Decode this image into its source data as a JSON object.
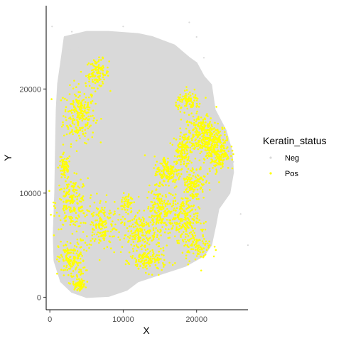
{
  "chart_data": {
    "type": "scatter",
    "title": "",
    "xlabel": "X",
    "ylabel": "Y",
    "xlim": [
      -500,
      27000
    ],
    "ylim": [
      -1200,
      28000
    ],
    "x_ticks": [
      0,
      10000,
      20000
    ],
    "x_tick_labels": [
      "0",
      "10000",
      "20000"
    ],
    "y_ticks": [
      0,
      10000,
      20000
    ],
    "y_tick_labels": [
      "0",
      "10000",
      "20000"
    ],
    "grid": false,
    "legend": {
      "title": "Keratin_status",
      "position": "right",
      "entries": [
        {
          "label": "Neg",
          "color": "#d9d9d9"
        },
        {
          "label": "Pos",
          "color": "#ffff00"
        }
      ]
    },
    "series": [
      {
        "name": "Neg",
        "color": "#d9d9d9",
        "tissue_outline": [
          [
            2000,
            25000
          ],
          [
            5000,
            25500
          ],
          [
            8000,
            25500
          ],
          [
            12000,
            25300
          ],
          [
            14000,
            25000
          ],
          [
            17000,
            24200
          ],
          [
            19000,
            23000
          ],
          [
            20000,
            22500
          ],
          [
            21000,
            21200
          ],
          [
            22000,
            20400
          ],
          [
            22500,
            18000
          ],
          [
            24000,
            16000
          ],
          [
            24800,
            14000
          ],
          [
            25000,
            12000
          ],
          [
            24500,
            10000
          ],
          [
            23000,
            8500
          ],
          [
            22600,
            7000
          ],
          [
            22000,
            5000
          ],
          [
            21000,
            4000
          ],
          [
            18500,
            3000
          ],
          [
            15000,
            2200
          ],
          [
            12000,
            1500
          ],
          [
            10500,
            700
          ],
          [
            8000,
            100
          ],
          [
            5000,
            0
          ],
          [
            3000,
            500
          ],
          [
            1500,
            1500
          ],
          [
            600,
            3500
          ],
          [
            500,
            6000
          ],
          [
            700,
            10000
          ],
          [
            800,
            14000
          ],
          [
            900,
            18000
          ],
          [
            1100,
            20500
          ],
          [
            1500,
            22500
          ]
        ],
        "points": [
          [
            3000,
            25500
          ],
          [
            2700,
            23800
          ],
          [
            6200,
            22800
          ],
          [
            13500,
            22500
          ],
          [
            9000,
            12500
          ],
          [
            14000,
            8500
          ],
          [
            15500,
            2500
          ],
          [
            11500,
            2000
          ],
          [
            16000,
            20000
          ],
          [
            19000,
            26400
          ],
          [
            20000,
            25000
          ],
          [
            21000,
            23000
          ],
          [
            10000,
            26000
          ],
          [
            300,
            26000
          ],
          [
            26000,
            8000
          ],
          [
            27000,
            5000
          ],
          [
            1500,
            21000
          ],
          [
            12000,
            19000
          ],
          [
            7000,
            17000
          ],
          [
            5000,
            14000
          ],
          [
            10000,
            5000
          ],
          [
            18000,
            23500
          ],
          [
            4000,
            24000
          ],
          [
            25000,
            13000
          ]
        ]
      },
      {
        "name": "Pos",
        "color": "#ffff00",
        "regions": [
          {
            "center": [
              4000,
              17500
            ],
            "spread": [
              1800,
              2200
            ],
            "n": 230
          },
          {
            "center": [
              6500,
              21500
            ],
            "spread": [
              1300,
              1100
            ],
            "n": 110
          },
          {
            "center": [
              2000,
              12500
            ],
            "spread": [
              700,
              1100
            ],
            "n": 70
          },
          {
            "center": [
              3000,
              9000
            ],
            "spread": [
              1800,
              2000
            ],
            "n": 190
          },
          {
            "center": [
              7000,
              7000
            ],
            "spread": [
              1900,
              2000
            ],
            "n": 170
          },
          {
            "center": [
              3000,
              3500
            ],
            "spread": [
              1500,
              1600
            ],
            "n": 160
          },
          {
            "center": [
              4000,
              1200
            ],
            "spread": [
              700,
              400
            ],
            "n": 70
          },
          {
            "center": [
              12500,
              6000
            ],
            "spread": [
              2200,
              1600
            ],
            "n": 200
          },
          {
            "center": [
              13500,
              3500
            ],
            "spread": [
              2000,
              900
            ],
            "n": 130
          },
          {
            "center": [
              15000,
              8500
            ],
            "spread": [
              1600,
              1500
            ],
            "n": 160
          },
          {
            "center": [
              18000,
              7500
            ],
            "spread": [
              1900,
              1600
            ],
            "n": 200
          },
          {
            "center": [
              16000,
              12000
            ],
            "spread": [
              1500,
              1300
            ],
            "n": 150
          },
          {
            "center": [
              19500,
              11000
            ],
            "spread": [
              1400,
              1400
            ],
            "n": 140
          },
          {
            "center": [
              20800,
              15500
            ],
            "spread": [
              2000,
              1700
            ],
            "n": 320
          },
          {
            "center": [
              23000,
              14000
            ],
            "spread": [
              1300,
              1600
            ],
            "n": 200
          },
          {
            "center": [
              18000,
              14000
            ],
            "spread": [
              900,
              1500
            ],
            "n": 120
          },
          {
            "center": [
              20000,
              5000
            ],
            "spread": [
              1700,
              1300
            ],
            "n": 110
          },
          {
            "center": [
              10500,
              9000
            ],
            "spread": [
              700,
              900
            ],
            "n": 50
          },
          {
            "center": [
              19000,
              18800
            ],
            "spread": [
              1500,
              700
            ],
            "n": 90
          }
        ]
      }
    ]
  }
}
